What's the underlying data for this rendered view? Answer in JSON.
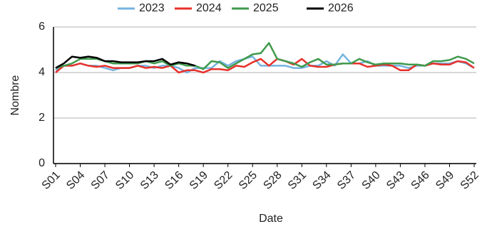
{
  "chart_data": {
    "type": "line",
    "x_label": "Date",
    "y_label": "Nombre",
    "categories": [
      "S01",
      null,
      null,
      "S04",
      null,
      null,
      "S07",
      null,
      null,
      "S10",
      null,
      null,
      "S13",
      null,
      null,
      "S16",
      null,
      null,
      "S19",
      null,
      null,
      "S22",
      null,
      null,
      "S25",
      null,
      null,
      "S28",
      null,
      null,
      "S31",
      null,
      null,
      "S34",
      null,
      null,
      "S37",
      null,
      null,
      "S40",
      null,
      null,
      "S43",
      null,
      null,
      "S46",
      null,
      null,
      "S49",
      null,
      null,
      "S52"
    ],
    "series": [
      {
        "name": "2023",
        "color": "#74b4e0",
        "values": [
          4.1,
          4.3,
          4.3,
          4.4,
          4.3,
          4.3,
          4.2,
          4.1,
          4.2,
          4.2,
          4.3,
          4.3,
          4.2,
          4.3,
          4.3,
          4.2,
          4.0,
          4.2,
          4.2,
          4.2,
          4.5,
          4.3,
          4.5,
          4.6,
          4.7,
          4.3,
          4.3,
          4.3,
          4.3,
          4.2,
          4.2,
          4.3,
          4.3,
          4.5,
          4.3,
          4.8,
          4.4,
          4.4,
          4.5,
          4.3,
          4.3,
          4.3,
          4.3,
          4.2,
          4.3,
          4.3,
          4.4,
          4.4,
          4.4,
          4.5,
          4.4,
          4.2
        ]
      },
      {
        "name": "2024",
        "color": "#e8302a",
        "values": [
          4.0,
          4.3,
          4.3,
          4.4,
          4.3,
          4.25,
          4.3,
          4.2,
          4.2,
          4.2,
          4.3,
          4.2,
          4.25,
          4.2,
          4.3,
          4.0,
          4.1,
          4.1,
          4.0,
          4.15,
          4.15,
          4.1,
          4.3,
          4.25,
          4.45,
          4.6,
          4.3,
          4.6,
          4.5,
          4.35,
          4.6,
          4.3,
          4.25,
          4.25,
          4.35,
          4.4,
          4.4,
          4.4,
          4.25,
          4.3,
          4.35,
          4.3,
          4.1,
          4.1,
          4.35,
          4.3,
          4.4,
          4.35,
          4.35,
          4.5,
          4.45,
          4.2
        ]
      },
      {
        "name": "2025",
        "color": "#3f9a4c",
        "values": [
          4.2,
          4.3,
          4.4,
          4.6,
          4.6,
          4.6,
          4.5,
          4.4,
          4.4,
          4.4,
          4.4,
          4.5,
          4.4,
          4.5,
          4.3,
          4.4,
          4.3,
          4.3,
          4.15,
          4.5,
          4.45,
          4.2,
          4.4,
          4.6,
          4.8,
          4.85,
          5.3,
          4.6,
          4.5,
          4.4,
          4.25,
          4.45,
          4.6,
          4.35,
          4.35,
          4.4,
          4.4,
          4.6,
          4.45,
          4.35,
          4.4,
          4.4,
          4.4,
          4.35,
          4.35,
          4.3,
          4.5,
          4.5,
          4.55,
          4.7,
          4.6,
          4.4
        ]
      },
      {
        "name": "2026",
        "color": "#000000",
        "values": [
          4.2,
          4.4,
          4.7,
          4.65,
          4.7,
          4.65,
          4.5,
          4.5,
          4.45,
          4.45,
          4.45,
          4.5,
          4.5,
          4.6,
          4.35,
          4.45,
          4.4,
          4.3,
          null,
          null,
          null,
          null,
          null,
          null,
          null,
          null,
          null,
          null,
          null,
          null,
          null,
          null,
          null,
          null,
          null,
          null,
          null,
          null,
          null,
          null,
          null,
          null,
          null,
          null,
          null,
          null,
          null,
          null,
          null,
          null,
          null,
          null
        ]
      }
    ],
    "ylim": [
      0,
      6
    ],
    "yticks": [
      0,
      2,
      4,
      6
    ],
    "grid": true,
    "legend": "top"
  }
}
